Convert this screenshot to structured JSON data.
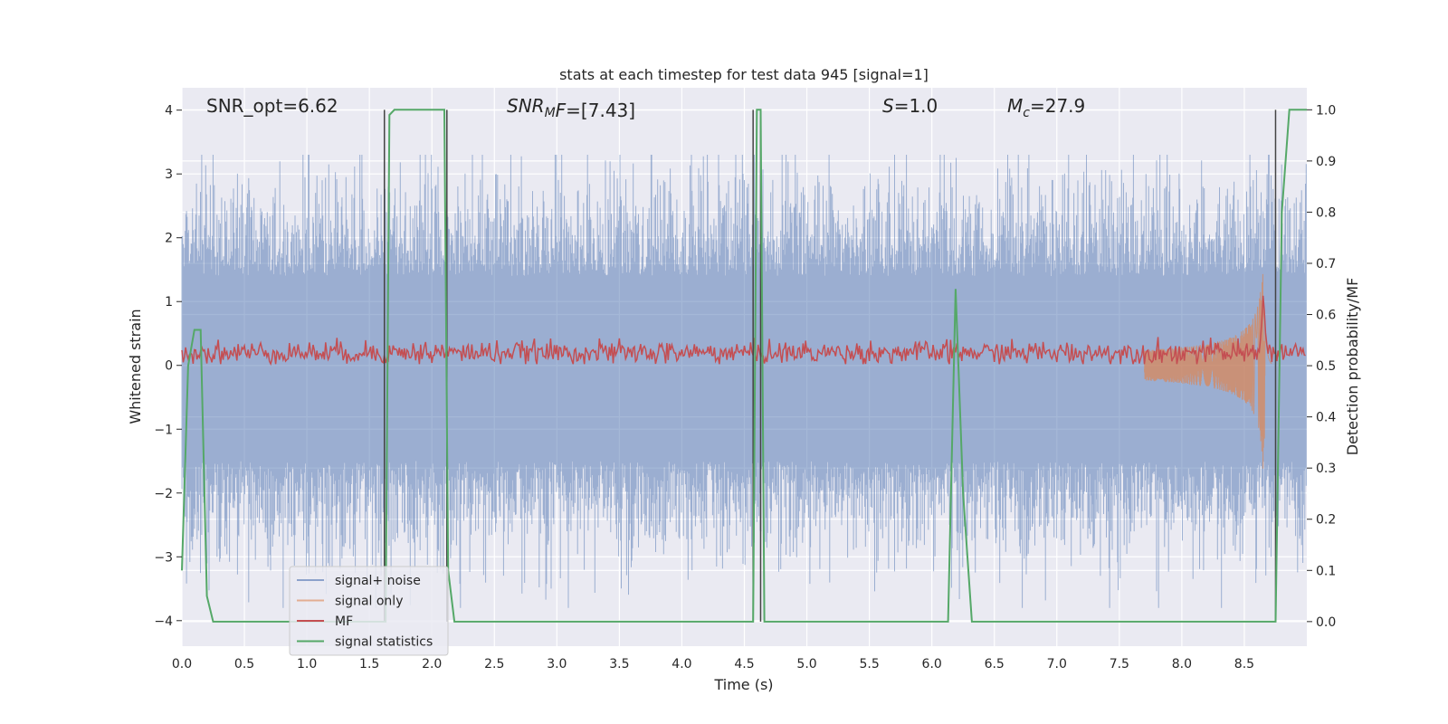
{
  "chart_data": {
    "type": "line",
    "title": "stats at each timestep for test data 945 [signal=1]",
    "xlabel": "Time (s)",
    "ylabel": "Whitened strain",
    "y2label": "Detection probability/MF",
    "xlim": [
      0.0,
      9.0
    ],
    "ylim": [
      -4.4,
      4.35
    ],
    "y2lim": [
      -0.048,
      1.043
    ],
    "xticks": [
      "0.0",
      "0.5",
      "1.0",
      "1.5",
      "2.0",
      "2.5",
      "3.0",
      "3.5",
      "4.0",
      "4.5",
      "5.0",
      "5.5",
      "6.0",
      "6.5",
      "7.0",
      "7.5",
      "8.0",
      "8.5"
    ],
    "yticks": [
      "−4",
      "−3",
      "−2",
      "−1",
      "0",
      "1",
      "2",
      "3",
      "4"
    ],
    "y2ticks": [
      "0.0",
      "0.1",
      "0.2",
      "0.3",
      "0.4",
      "0.5",
      "0.6",
      "0.7",
      "0.8",
      "0.9",
      "1.0"
    ],
    "grid": true,
    "legend_position": "lower-left",
    "annotations": {
      "snr_opt": "SNR_opt=6.62",
      "snr_mf": "SNR_MF=[7.43]",
      "s": "S=1.0",
      "mc": "M_c=27.9"
    },
    "series": [
      {
        "name": "signal+ noise",
        "color": "#4c72b0",
        "description_range": [
          -3.9,
          3.4
        ]
      },
      {
        "name": "signal only",
        "color": "#dd8452",
        "chirp_peak_time": 8.65,
        "peak_amplitude": 1.35
      },
      {
        "name": "MF",
        "color": "#c44e52",
        "baseline": 0.2,
        "peak_time": 8.65,
        "peak_value": 1.0
      },
      {
        "name": "signal statistics",
        "color": "#55a868",
        "x": [
          0.0,
          0.05,
          0.1,
          0.15,
          0.2,
          0.25,
          1.6,
          1.63,
          1.66,
          1.7,
          2.1,
          2.13,
          2.18,
          2.25,
          4.57,
          4.6,
          4.63,
          4.66,
          6.13,
          6.19,
          6.25,
          6.32,
          8.75,
          8.8,
          8.86,
          9.0
        ],
        "y": [
          0.1,
          0.5,
          0.57,
          0.57,
          0.05,
          0.0,
          0.0,
          0.0,
          0.99,
          1.0,
          1.0,
          0.1,
          0.0,
          0.0,
          0.0,
          1.0,
          1.0,
          0.0,
          0.0,
          0.65,
          0.25,
          0.0,
          0.0,
          0.8,
          1.0,
          1.0
        ]
      }
    ],
    "vlines": [
      1.62,
      2.12,
      4.57,
      4.63,
      8.75
    ]
  },
  "legend": {
    "items": [
      {
        "label": "signal+ noise",
        "color": "#4c72b0"
      },
      {
        "label": "signal only",
        "color": "#dd8452"
      },
      {
        "label": "MF",
        "color": "#c44e52"
      },
      {
        "label": "signal statistics",
        "color": "#55a868"
      }
    ]
  },
  "colors": {
    "axes_bg": "#eaeaf2",
    "grid": "#ffffff",
    "noise": "#4c72b0",
    "signal": "#dd8452",
    "mf": "#c44e52",
    "stat": "#55a868",
    "vline": "#444444"
  }
}
